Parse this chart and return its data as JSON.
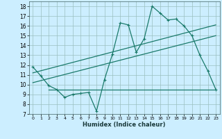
{
  "xlabel": "Humidex (Indice chaleur)",
  "bg_color": "#cceeff",
  "line_color": "#1a7a6a",
  "xlim": [
    -0.5,
    23.5
  ],
  "ylim": [
    7,
    18.5
  ],
  "xticks": [
    0,
    1,
    2,
    3,
    4,
    5,
    6,
    7,
    8,
    9,
    10,
    11,
    12,
    13,
    14,
    15,
    16,
    17,
    18,
    19,
    20,
    21,
    22,
    23
  ],
  "yticks": [
    7,
    8,
    9,
    10,
    11,
    12,
    13,
    14,
    15,
    16,
    17,
    18
  ],
  "main_x": [
    0,
    1,
    2,
    3,
    4,
    5,
    6,
    7,
    8,
    9,
    10,
    11,
    12,
    13,
    14,
    15,
    16,
    17,
    18,
    19,
    20,
    21,
    22,
    23
  ],
  "main_y": [
    11.8,
    10.9,
    9.9,
    9.5,
    8.7,
    9.0,
    9.1,
    9.2,
    7.3,
    10.5,
    13.1,
    16.3,
    16.1,
    13.3,
    14.7,
    18.0,
    17.3,
    16.6,
    16.7,
    16.0,
    15.0,
    13.0,
    11.4,
    9.5
  ],
  "line1_x": [
    0,
    23
  ],
  "line1_y": [
    11.2,
    16.1
  ],
  "line2_x": [
    0,
    23
  ],
  "line2_y": [
    10.2,
    15.0
  ],
  "line3_x": [
    2,
    23
  ],
  "line3_y": [
    9.5,
    9.5
  ]
}
